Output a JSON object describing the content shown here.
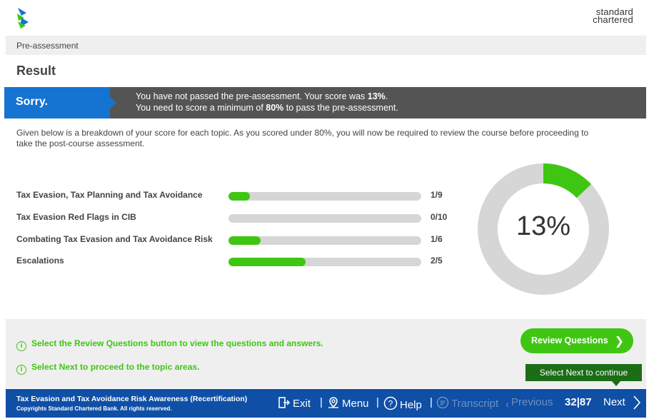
{
  "header": {
    "logo_icon": "sc-logo-icon",
    "brand_line1": "standard",
    "brand_line2": "chartered"
  },
  "breadcrumb": "Pre-assessment",
  "page_title": "Result",
  "banner": {
    "label": "Sorry.",
    "line1_prefix": "You have not passed the pre-assessment. Your score was ",
    "line1_score": "13%",
    "line1_suffix": ".",
    "line2_prefix": "You need to score a minimum of ",
    "line2_min": "80%",
    "line2_suffix": " to pass the pre-assessment.",
    "colors": {
      "label_bg": "#1573d1",
      "msg_bg": "#545454"
    }
  },
  "breakdown_text": "Given below is a breakdown of your score for each topic. As you scored under 80%, you will now be required to review the course before proceeding to take the post-course assessment.",
  "topics": [
    {
      "name": "Tax Evasion, Tax Planning and Tax Avoidance",
      "score": "1/9",
      "fraction": 0.111
    },
    {
      "name": "Tax Evasion Red Flags in CIB",
      "score": "0/10",
      "fraction": 0.0
    },
    {
      "name": "Combating Tax Evasion and Tax Avoidance Risk",
      "score": "1/6",
      "fraction": 0.167
    },
    {
      "name": "Escalations",
      "score": "2/5",
      "fraction": 0.4
    }
  ],
  "overall": {
    "percent_label": "13%",
    "fraction": 0.13,
    "fill_color": "#3fc613",
    "track_color": "#d6d6d6"
  },
  "info": {
    "icon": "info-icon",
    "line1": "Select the Review Questions button to view the questions and answers.",
    "line2": "Select Next to proceed to the topic areas."
  },
  "review_button": {
    "label": "Review Questions",
    "icon": "chevron-right-icon"
  },
  "tooltip": "Select Next to continue",
  "footer": {
    "course_title": "Tax Evasion and Tax Avoidance Risk Awareness (Recertification)",
    "copyright": "Copyrights Standard Chartered Bank. All rights reserved.",
    "exit": "Exit",
    "menu": "Menu",
    "help": "Help",
    "transcript": "Transcript",
    "previous": "Previous",
    "page_current": "32",
    "page_total": "87",
    "next": "Next"
  }
}
